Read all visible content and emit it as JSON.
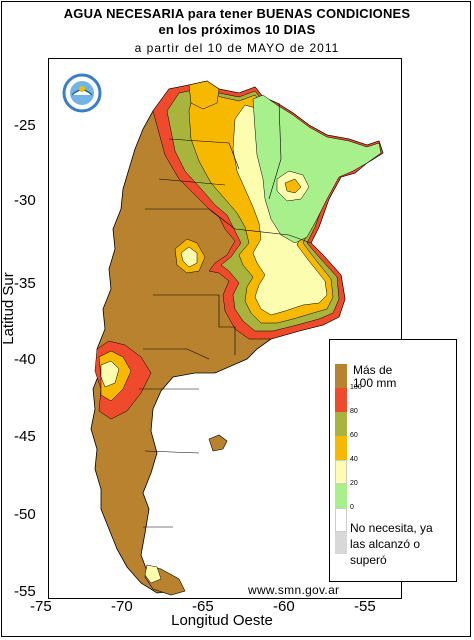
{
  "title": {
    "line1": "AGUA NECESARIA para tener BUENAS CONDICIONES",
    "line2": "en los próximos 10 DIAS",
    "line3": "a partir del 10 de MAYO de 2011"
  },
  "axes": {
    "xlabel": "Longitud Oeste",
    "ylabel": "Latitud Sur",
    "xticks": [
      "-75",
      "-70",
      "-65",
      "-60",
      "-55"
    ],
    "yticks": [
      "-25",
      "-30",
      "-35",
      "-40",
      "-45",
      "-50",
      "-55"
    ]
  },
  "legend": {
    "top_label": "Más de 100 mm",
    "top_label_l1": "Más de",
    "top_label_l2": "100 mm",
    "bottom_label_l1": "No necesita, ya",
    "bottom_label_l2": "las alcanzó o",
    "bottom_label_l3": "superó",
    "classes": [
      {
        "label": "100",
        "color": "#b8822e"
      },
      {
        "label": "80",
        "color": "#f04a2c"
      },
      {
        "label": "60",
        "color": "#a8b43c"
      },
      {
        "label": "40",
        "color": "#f7b800"
      },
      {
        "label": "20",
        "color": "#fdfdb0"
      },
      {
        "label": "0",
        "color": "#a8f08c"
      },
      {
        "label": "",
        "color": "#d8d8d8"
      }
    ]
  },
  "credit": "www.smn.gov.ar",
  "colors": {
    "brown": "#b8822e",
    "red": "#f04a2c",
    "olive": "#a8b43c",
    "orange": "#f7b800",
    "yellow": "#fdfdb0",
    "green": "#a8f08c",
    "grey": "#d8d8d8"
  },
  "icons": {
    "seal": "smn-seal-icon"
  }
}
